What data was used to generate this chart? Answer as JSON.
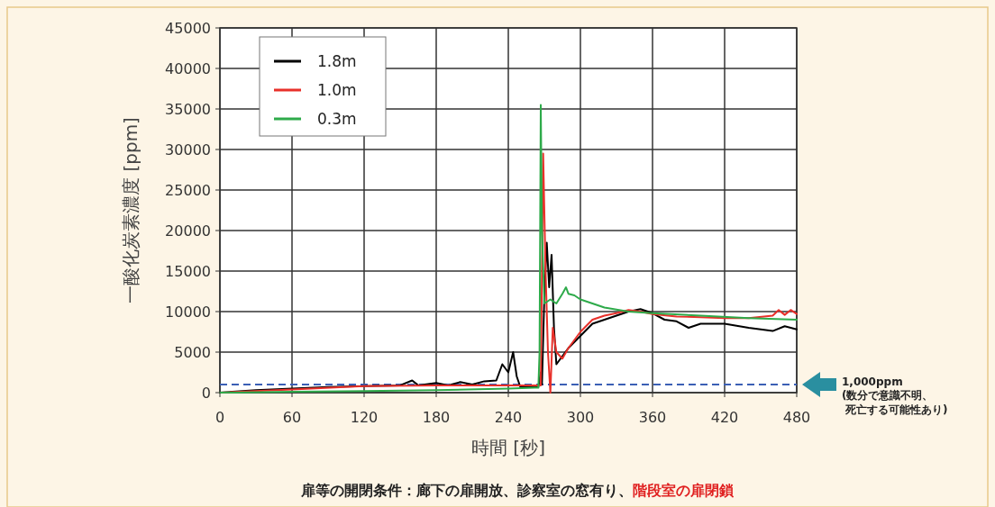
{
  "chart_data": {
    "type": "line",
    "xlabel": "時間 [秒]",
    "ylabel": "一酸化炭素濃度 [ppm]",
    "xlim": [
      0,
      480
    ],
    "xticks": [
      0,
      60,
      120,
      180,
      240,
      300,
      360,
      420,
      480
    ],
    "ylim": [
      0,
      45000
    ],
    "yticks": [
      0,
      5000,
      10000,
      15000,
      20000,
      25000,
      30000,
      35000,
      40000,
      45000
    ],
    "grid": true,
    "legend": "top left",
    "line_style": "solid",
    "marker": "none",
    "series": [
      {
        "name": "1.8m",
        "color": "#000000",
        "x": [
          0,
          30,
          60,
          90,
          120,
          150,
          160,
          165,
          180,
          190,
          200,
          210,
          220,
          230,
          235,
          240,
          244,
          247,
          250,
          255,
          265,
          267,
          268,
          270,
          272,
          274,
          276,
          278,
          280,
          285,
          290,
          300,
          310,
          320,
          330,
          340,
          350,
          360,
          370,
          380,
          390,
          400,
          420,
          440,
          460,
          470,
          480
        ],
        "values": [
          0,
          300,
          500,
          700,
          800,
          900,
          1500,
          900,
          1200,
          900,
          1300,
          1000,
          1400,
          1500,
          3500,
          2500,
          5000,
          2000,
          700,
          700,
          700,
          2500,
          1000,
          12000,
          18500,
          13000,
          17000,
          8000,
          3500,
          4500,
          5500,
          7000,
          8500,
          9000,
          9500,
          10000,
          10300,
          9800,
          9000,
          8800,
          8000,
          8500,
          8500,
          8000,
          7600,
          8200,
          7800
        ]
      },
      {
        "name": "1.0m",
        "color": "#e8302a",
        "x": [
          0,
          60,
          120,
          180,
          240,
          265,
          267,
          269,
          271,
          273,
          275,
          277,
          280,
          285,
          290,
          300,
          310,
          320,
          330,
          340,
          350,
          360,
          380,
          400,
          420,
          440,
          460,
          465,
          470,
          475,
          480
        ],
        "values": [
          0,
          400,
          800,
          900,
          900,
          900,
          900,
          29500,
          15000,
          5000,
          0,
          8000,
          5000,
          4200,
          5500,
          7500,
          9000,
          9500,
          9800,
          10200,
          10000,
          9700,
          9400,
          9300,
          9200,
          9200,
          9500,
          10200,
          9600,
          10200,
          9700
        ]
      },
      {
        "name": "0.3m",
        "color": "#2eaa4a",
        "x": [
          0,
          60,
          120,
          180,
          240,
          262,
          265,
          266,
          267,
          268,
          270,
          275,
          280,
          285,
          288,
          290,
          295,
          300,
          310,
          320,
          340,
          360,
          400,
          440,
          480
        ],
        "values": [
          0,
          100,
          200,
          300,
          500,
          600,
          600,
          5000,
          35500,
          20000,
          11000,
          11500,
          11000,
          12200,
          13000,
          12200,
          12000,
          11500,
          11000,
          10500,
          10000,
          9800,
          9500,
          9200,
          9000
        ]
      }
    ],
    "ref_lines": [
      {
        "axis": "y",
        "value": 1000,
        "color": "#3b5fb5",
        "line_style": "dashed"
      }
    ],
    "annotations": [
      "1,000ppm",
      "(数分で意識不明、死亡する可能性あり)",
      "扉等の開閉条件：廊下の扉開放、診察室の窓有り、",
      "階段室の扉閉鎖"
    ]
  }
}
